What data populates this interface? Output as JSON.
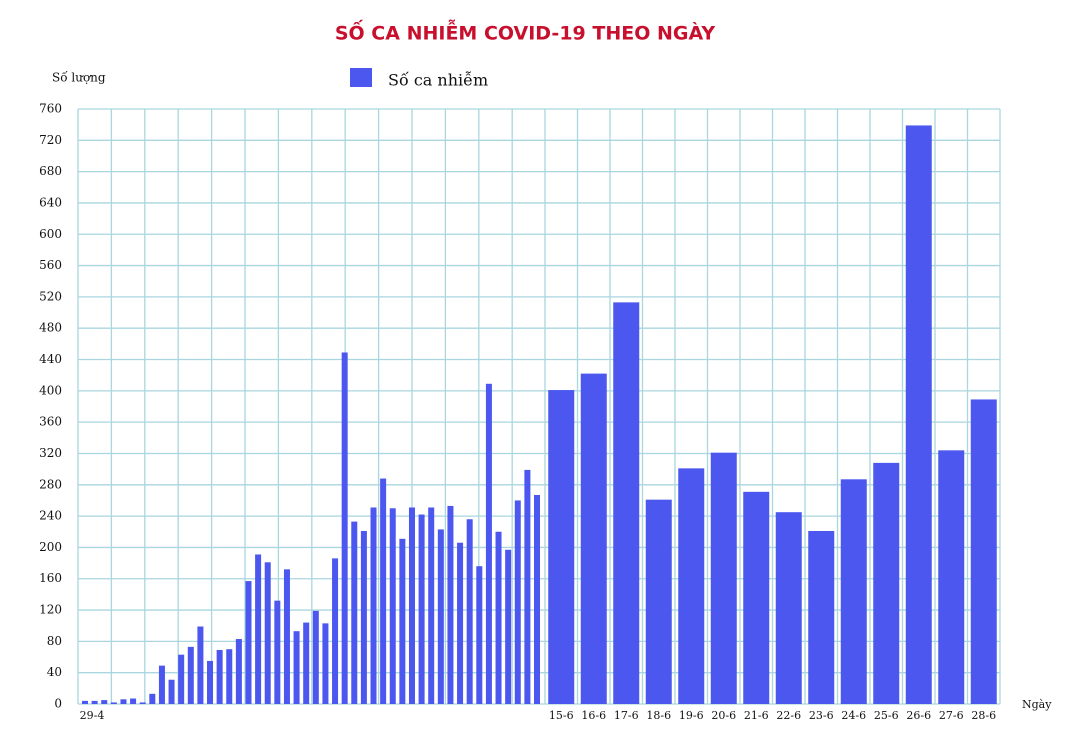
{
  "chart_data": {
    "type": "bar",
    "title": "SỐ CA NHIỄM COVID-19 THEO NGÀY",
    "y_label": "Số lượng",
    "x_label": "Ngày",
    "categories": [
      "29-4",
      null,
      null,
      null,
      null,
      null,
      null,
      null,
      null,
      null,
      null,
      null,
      null,
      null,
      null,
      null,
      null,
      null,
      null,
      null,
      null,
      null,
      null,
      null,
      null,
      null,
      null,
      null,
      null,
      null,
      null,
      null,
      null,
      null,
      null,
      null,
      null,
      null,
      null,
      null,
      null,
      null,
      null,
      null,
      null,
      null,
      null,
      null,
      "15-6",
      "16-6",
      "17-6",
      "18-6",
      "19-6",
      "20-6",
      "21-6",
      "22-6",
      "23-6",
      "24-6",
      "25-6",
      "26-6",
      "27-6",
      "28-6"
    ],
    "series": [
      {
        "name": "Số ca nhiễm",
        "color": "#4b57ee",
        "values": [
          4,
          4,
          5,
          2,
          6,
          7,
          2,
          13,
          49,
          31,
          63,
          73,
          99,
          55,
          69,
          70,
          83,
          157,
          191,
          181,
          132,
          172,
          93,
          104,
          119,
          103,
          186,
          449,
          233,
          221,
          251,
          288,
          250,
          211,
          251,
          242,
          251,
          223,
          253,
          206,
          236,
          176,
          409,
          220,
          197,
          260,
          299,
          267,
          401,
          422,
          513,
          261,
          301,
          321,
          271,
          245,
          221,
          287,
          308,
          739,
          324,
          389
        ]
      }
    ],
    "ylim": [
      0,
      760
    ],
    "yticks": [
      0,
      40,
      80,
      120,
      160,
      200,
      240,
      280,
      320,
      360,
      400,
      440,
      480,
      520,
      560,
      600,
      640,
      680,
      720,
      760
    ],
    "grid": true
  }
}
